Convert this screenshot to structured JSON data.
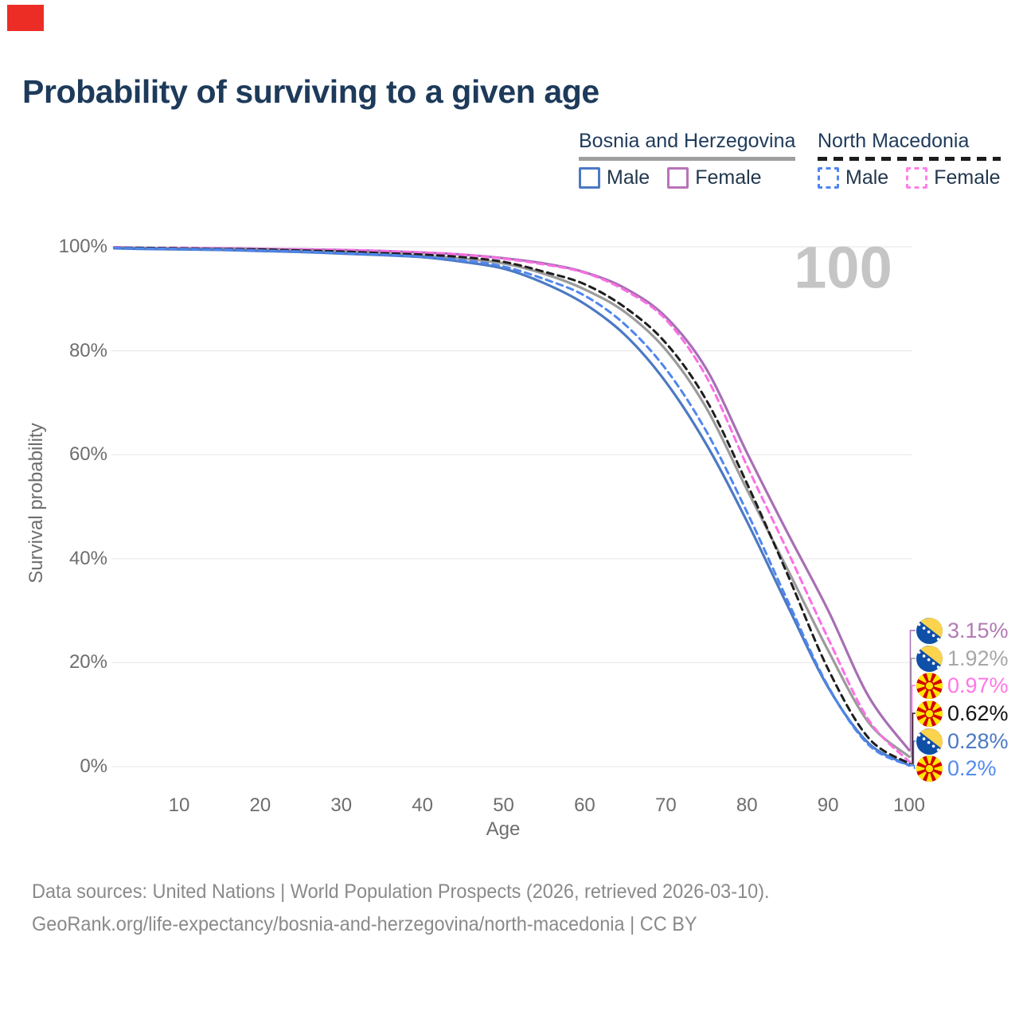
{
  "window": {
    "marker_color": "#ec2d26"
  },
  "title": "Probability of surviving to a given age",
  "legend": {
    "groups": [
      {
        "label": "Bosnia and Herzegovina",
        "line_style": "solid",
        "line_color": "#9f9f9f",
        "items": [
          {
            "label": "Male",
            "color": "#4b79c4",
            "style": "solid"
          },
          {
            "label": "Female",
            "color": "#b873ba",
            "style": "solid"
          }
        ]
      },
      {
        "label": "North Macedonia",
        "line_style": "dashed",
        "line_color": "#1c1c1c",
        "items": [
          {
            "label": "Male",
            "color": "#4f86ee",
            "style": "dashed"
          },
          {
            "label": "Female",
            "color": "#ff80e8",
            "style": "dashed"
          }
        ]
      }
    ]
  },
  "chart_data": {
    "type": "line",
    "title": "Probability of surviving to a given age",
    "xlabel": "Age",
    "ylabel": "Survival probability",
    "xlim": [
      2,
      100
    ],
    "ylim": [
      0,
      100
    ],
    "grid": "horizontal",
    "legend_position": "top-right",
    "hover_age_label": "100",
    "x_ticks": [
      10,
      20,
      30,
      40,
      50,
      60,
      70,
      80,
      90,
      100
    ],
    "y_ticks": [
      0,
      20,
      40,
      60,
      80,
      100
    ],
    "y_tick_labels": [
      "0%",
      "20%",
      "40%",
      "60%",
      "80%",
      "100%"
    ],
    "x": [
      2,
      5,
      10,
      15,
      20,
      25,
      30,
      35,
      40,
      45,
      50,
      55,
      60,
      65,
      70,
      75,
      80,
      85,
      90,
      95,
      100
    ],
    "series": [
      {
        "name": "Bosnia and Herzegovina Female",
        "country": "Bosnia and Herzegovina",
        "sex": "Female",
        "style": "solid",
        "color": "#a86fb4",
        "end_label": "3.15%",
        "end_row": 0,
        "values": [
          99.9,
          99.8,
          99.7,
          99.7,
          99.6,
          99.5,
          99.4,
          99.2,
          98.9,
          98.5,
          97.8,
          96.8,
          95.1,
          92.0,
          86.5,
          76.5,
          60.4,
          45.0,
          30.1,
          13.5,
          3.15
        ]
      },
      {
        "name": "Bosnia and Herzegovina Total",
        "country": "Bosnia and Herzegovina",
        "sex": "Both",
        "style": "solid",
        "color": "#9b9b9b",
        "end_label": "1.92%",
        "end_row": 1,
        "values": [
          99.8,
          99.7,
          99.6,
          99.5,
          99.4,
          99.2,
          99.0,
          98.7,
          98.3,
          97.7,
          96.8,
          94.8,
          91.8,
          87.4,
          80.2,
          69.0,
          53.3,
          38.0,
          22.4,
          8.5,
          1.92
        ]
      },
      {
        "name": "Bosnia and Herzegovina Male",
        "country": "Bosnia and Herzegovina",
        "sex": "Male",
        "style": "solid",
        "color": "#4b79c4",
        "end_label": "0.28%",
        "end_row": 4,
        "values": [
          99.7,
          99.6,
          99.5,
          99.4,
          99.2,
          99.0,
          98.7,
          98.4,
          98.0,
          97.1,
          95.8,
          93.0,
          89.0,
          83.0,
          74.0,
          62.0,
          47.2,
          31.0,
          15.3,
          4.5,
          0.28
        ]
      },
      {
        "name": "North Macedonia Female",
        "country": "North Macedonia",
        "sex": "Female",
        "style": "dashed",
        "color": "#fb6fe4",
        "end_label": "0.97%",
        "end_row": 2,
        "values": [
          99.9,
          99.8,
          99.8,
          99.7,
          99.6,
          99.5,
          99.4,
          99.2,
          98.9,
          98.5,
          97.7,
          96.6,
          95.0,
          91.6,
          86.0,
          75.0,
          57.9,
          41.5,
          24.7,
          9.0,
          0.97
        ]
      },
      {
        "name": "North Macedonia Total",
        "country": "North Macedonia",
        "sex": "Both",
        "style": "dashed",
        "color": "#1e1e1e",
        "end_label": "0.62%",
        "end_row": 3,
        "values": [
          99.8,
          99.8,
          99.7,
          99.6,
          99.5,
          99.3,
          99.1,
          98.8,
          98.5,
          98.0,
          97.1,
          95.2,
          92.8,
          88.3,
          81.5,
          70.5,
          54.5,
          37.0,
          18.8,
          5.5,
          0.62
        ]
      },
      {
        "name": "North Macedonia Male",
        "country": "North Macedonia",
        "sex": "Male",
        "style": "dashed",
        "color": "#4f86ee",
        "end_label": "0.2%",
        "end_row": 5,
        "values": [
          99.8,
          99.7,
          99.6,
          99.5,
          99.3,
          99.1,
          98.8,
          98.5,
          98.1,
          97.4,
          96.2,
          93.8,
          90.6,
          85.0,
          76.5,
          64.5,
          49.0,
          32.0,
          15.5,
          4.2,
          0.2
        ]
      }
    ]
  },
  "end_labels": [
    {
      "value": "3.15%",
      "color": "#b27ab2",
      "flag": "ba",
      "series": "Bosnia and Herzegovina Female"
    },
    {
      "value": "1.92%",
      "color": "#a7a7a7",
      "flag": "ba",
      "series": "Bosnia and Herzegovina Total"
    },
    {
      "value": "0.97%",
      "color": "#ff77e6",
      "flag": "mk",
      "series": "North Macedonia Female"
    },
    {
      "value": "0.62%",
      "color": "#141414",
      "flag": "mk",
      "series": "North Macedonia Total"
    },
    {
      "value": "0.28%",
      "color": "#4b79c4",
      "flag": "ba",
      "series": "Bosnia and Herzegovina Male"
    },
    {
      "value": "0.2%",
      "color": "#548bee",
      "flag": "mk",
      "series": "North Macedonia Male"
    }
  ],
  "footer": {
    "line1": "Data sources: United Nations | World Population Prospects (2026, retrieved 2026-03-10).",
    "line2": "GeoRank.org/life-expectancy/bosnia-and-herzegovina/north-macedonia | CC BY"
  }
}
